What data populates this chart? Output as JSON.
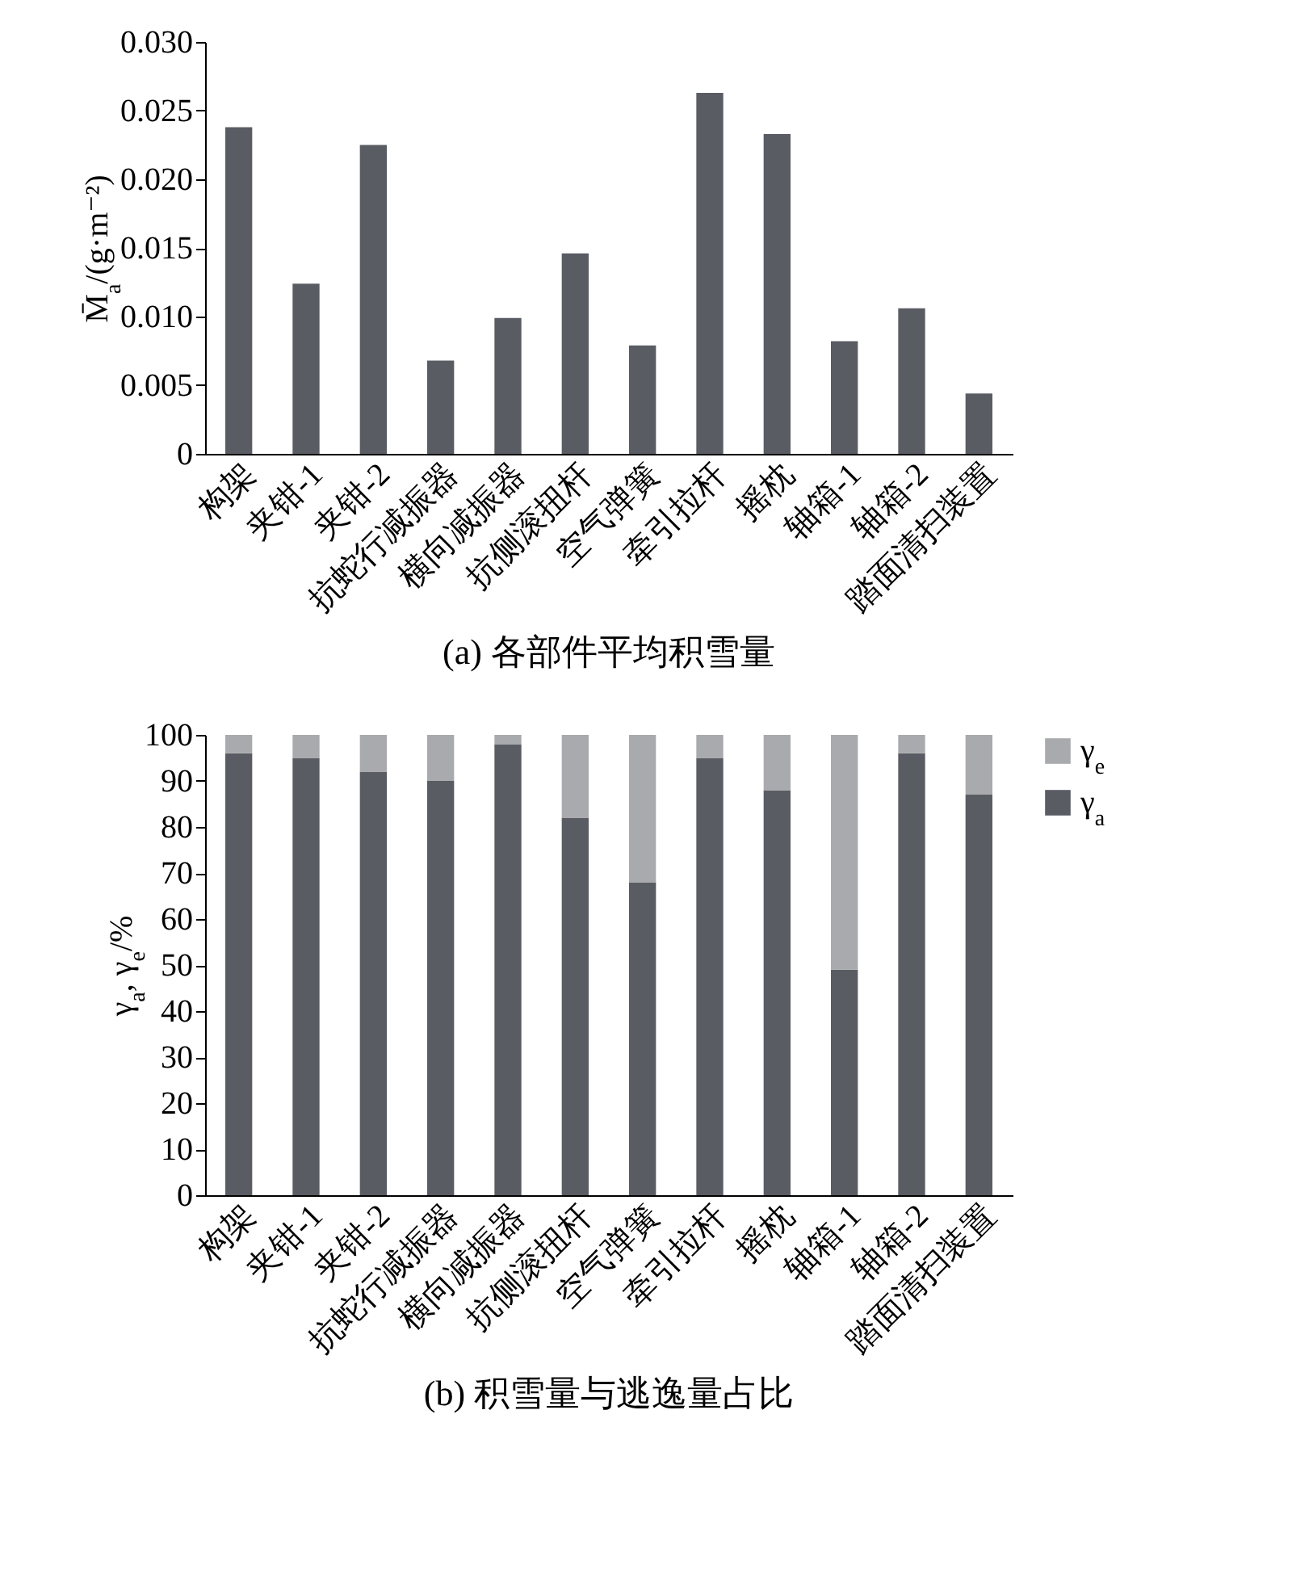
{
  "chart_data": [
    {
      "type": "bar",
      "title": "(a) 各部件平均积雪量",
      "ylabel": "M̄$_{a}$/(g·m⁻²)",
      "categories": [
        "构架",
        "夹钳-1",
        "夹钳-2",
        "抗蛇行减振器",
        "横向减振器",
        "抗侧滚扭杆",
        "空气弹簧",
        "牵引拉杆",
        "摇枕",
        "轴箱-1",
        "轴箱-2",
        "踏面清扫装置"
      ],
      "values": [
        0.0238,
        0.0124,
        0.0225,
        0.0068,
        0.0099,
        0.0146,
        0.0079,
        0.0263,
        0.0233,
        0.0082,
        0.0106,
        0.0044
      ],
      "color": "#5a5c63",
      "ylim": [
        0,
        0.03
      ],
      "yticks": [
        {
          "value": 0,
          "label": "0"
        },
        {
          "value": 0.005,
          "label": "0.005"
        },
        {
          "value": 0.01,
          "label": "0.010"
        },
        {
          "value": 0.015,
          "label": "0.015"
        },
        {
          "value": 0.02,
          "label": "0.020"
        },
        {
          "value": 0.025,
          "label": "0.025"
        },
        {
          "value": 0.03,
          "label": "0.030"
        }
      ]
    },
    {
      "type": "bar",
      "title": "(b) 积雪量与逃逸量占比",
      "ylabel": "γ$_{a}$, γ$_{e}$/%",
      "stacked": true,
      "legend": "right",
      "categories": [
        "构架",
        "夹钳-1",
        "夹钳-2",
        "抗蛇行减振器",
        "横向减振器",
        "抗侧滚扭杆",
        "空气弹簧",
        "牵引拉杆",
        "摇枕",
        "轴箱-1",
        "轴箱-2",
        "踏面清扫装置"
      ],
      "series": [
        {
          "name": "γ$_{a}$",
          "color": "#5a5c63",
          "values": [
            96,
            95,
            92,
            90,
            98,
            82,
            68,
            95,
            88,
            49,
            96,
            87
          ]
        },
        {
          "name": "γ$_{e}$",
          "color": "#a9aaad",
          "values": [
            4,
            5,
            8,
            10,
            2,
            18,
            32,
            5,
            12,
            51,
            4,
            13
          ]
        }
      ],
      "ylim": [
        0,
        100
      ],
      "yticks": [
        0,
        10,
        20,
        30,
        40,
        50,
        60,
        70,
        80,
        90,
        100
      ]
    }
  ]
}
